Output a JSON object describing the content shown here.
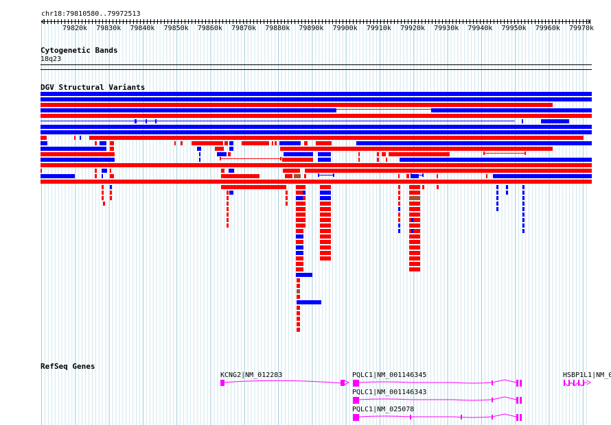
{
  "ruler": {
    "range": "chr18:79810580..79972513",
    "ticks": [
      "79820k",
      "79830k",
      "79840k",
      "79850k",
      "79860k",
      "79870k",
      "79880k",
      "79890k",
      "79900k",
      "79910k",
      "79920k",
      "79930k",
      "79940k",
      "79950k",
      "79960k",
      "79970k"
    ]
  },
  "tracks": {
    "cyto": {
      "title": "Cytogenetic Bands",
      "band": "18q23"
    },
    "dgv": {
      "title": "DGV Structural Variants"
    },
    "refseq": {
      "title": "RefSeq Genes"
    }
  },
  "genes": [
    {
      "label": "KCNG2|NM_012283"
    },
    {
      "label": "PQLC1|NM_001146345"
    },
    {
      "label": "PQLC1|NM_001146343"
    },
    {
      "label": "PQLC1|NM_025078"
    },
    {
      "label": "HSBP1L1|NM_0"
    }
  ],
  "colors": {
    "gain": "#0000ff",
    "loss": "#ff0000",
    "complex": "#a0522d",
    "gene": "#ff00ff",
    "grid": "#add8e6"
  }
}
